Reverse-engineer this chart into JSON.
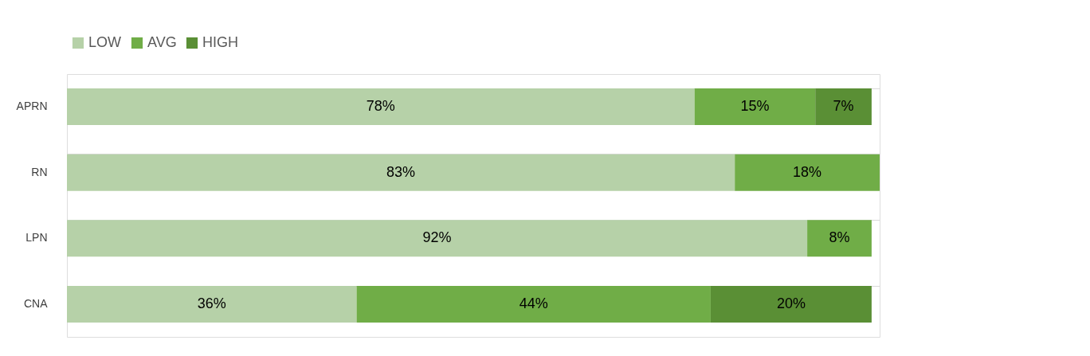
{
  "chart_data": {
    "type": "bar",
    "orientation": "horizontal",
    "stacked": true,
    "categories": [
      "APRN",
      "RN",
      "LPN",
      "CNA"
    ],
    "series": [
      {
        "name": "LOW",
        "color": "#b6d1a8",
        "values": [
          78,
          83,
          92,
          36
        ],
        "value_labels": [
          "78%",
          "83%",
          "92%",
          "36%"
        ]
      },
      {
        "name": "AVG",
        "color": "#70ad47",
        "values": [
          15,
          18,
          8,
          44
        ],
        "value_labels": [
          "15%",
          "18%",
          "8%",
          "44%"
        ]
      },
      {
        "name": "HIGH",
        "color": "#5a8f35",
        "values": [
          7,
          null,
          null,
          20
        ],
        "value_labels": [
          "7%",
          null,
          null,
          "20%"
        ]
      }
    ],
    "legend": "top",
    "grid": "y"
  }
}
